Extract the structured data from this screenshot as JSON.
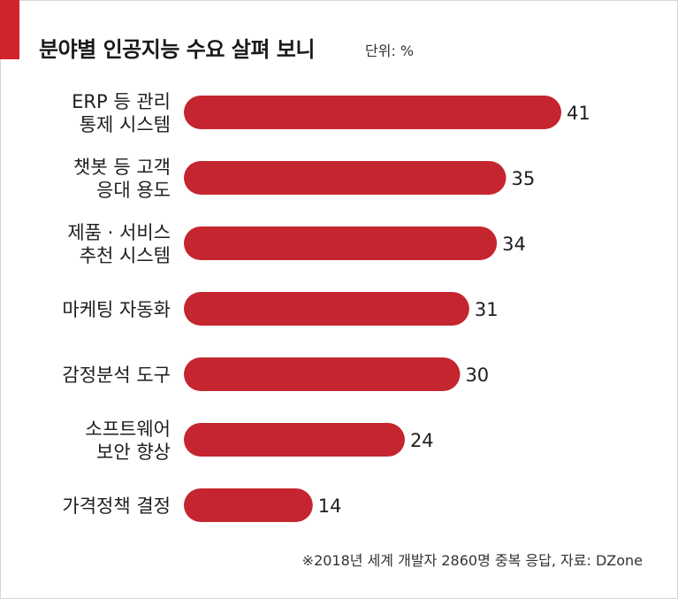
{
  "header": {
    "title": "분야별 인공지능 수요 살펴 보니",
    "unit": "단위: %"
  },
  "footnote": "※2018년 세계 개발자 2860명 중복 응답, 자료: DZone",
  "colors": {
    "accent": "#d0232c",
    "bar": "#c4252e"
  },
  "chart_data": {
    "type": "bar",
    "orientation": "horizontal",
    "categories": [
      [
        "ERP 등 관리",
        "통제 시스템"
      ],
      [
        "챗봇 등 고객",
        "응대 용도"
      ],
      [
        "제품 · 서비스",
        "추천 시스템"
      ],
      [
        "마케팅 자동화"
      ],
      [
        "감정분석 도구"
      ],
      [
        "소프트웨어",
        "보안 향상"
      ],
      [
        "가격정책 결정"
      ]
    ],
    "values": [
      41,
      35,
      34,
      31,
      30,
      24,
      14
    ],
    "title": "분야별 인공지능 수요 살펴 보니",
    "unit": "%",
    "xlim": [
      0,
      41
    ],
    "grid": false,
    "legend": "none"
  }
}
